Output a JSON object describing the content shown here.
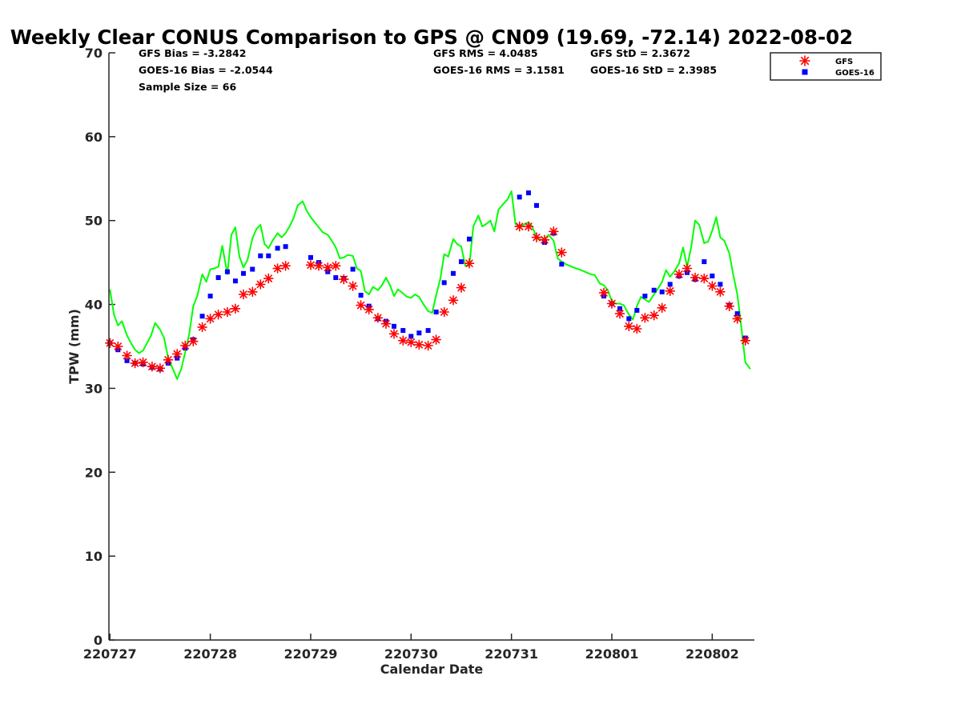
{
  "chart_data": {
    "type": "line+scatter",
    "title": "Weekly Clear CONUS Comparison to GPS @ CN09 (19.69, -72.14) 2022-08-02",
    "xlabel": "Calendar Date",
    "ylabel": "TPW (mm)",
    "xlim": [
      -0.01,
      6.42
    ],
    "ylim": [
      0,
      70
    ],
    "x_ticks": [
      {
        "value": 0,
        "label": "220727"
      },
      {
        "value": 1,
        "label": "220728"
      },
      {
        "value": 2,
        "label": "220729"
      },
      {
        "value": 3,
        "label": "220730"
      },
      {
        "value": 4,
        "label": "220731"
      },
      {
        "value": 5,
        "label": "220801"
      },
      {
        "value": 6,
        "label": "220802"
      }
    ],
    "y_ticks": [
      0,
      10,
      20,
      30,
      40,
      50,
      60,
      70
    ],
    "stats": [
      {
        "id": "gfs_bias",
        "text": "GFS Bias = -3.2842"
      },
      {
        "id": "goes_bias",
        "text": "GOES-16 Bias = -2.0544"
      },
      {
        "id": "sample_size",
        "text": "Sample Size = 66"
      },
      {
        "id": "gfs_rms",
        "text": "GFS RMS = 4.0485"
      },
      {
        "id": "goes_rms",
        "text": "GOES-16 RMS = 3.1581"
      },
      {
        "id": "gfs_std",
        "text": "GFS StD = 2.3672"
      },
      {
        "id": "goes_std",
        "text": "GOES-16 StD = 2.3985"
      }
    ],
    "legend": {
      "position": "top-right",
      "entries": [
        {
          "label": "GFS",
          "marker": "asterisk",
          "color": "#ff0000"
        },
        {
          "label": "GOES-16",
          "marker": "square",
          "color": "#0000ff"
        }
      ]
    },
    "series": [
      {
        "name": "GPS",
        "type": "line",
        "color": "#00ff00",
        "points": [
          [
            0.0,
            41.8
          ],
          [
            0.04,
            38.8
          ],
          [
            0.08,
            37.5
          ],
          [
            0.12,
            38.0
          ],
          [
            0.17,
            36.3
          ],
          [
            0.21,
            35.4
          ],
          [
            0.25,
            34.6
          ],
          [
            0.29,
            34.2
          ],
          [
            0.33,
            34.5
          ],
          [
            0.37,
            35.4
          ],
          [
            0.41,
            36.3
          ],
          [
            0.45,
            37.8
          ],
          [
            0.5,
            37.0
          ],
          [
            0.54,
            36.0
          ],
          [
            0.58,
            33.6
          ],
          [
            0.62,
            32.5
          ],
          [
            0.67,
            31.1
          ],
          [
            0.71,
            32.3
          ],
          [
            0.75,
            34.3
          ],
          [
            0.79,
            36.5
          ],
          [
            0.83,
            39.8
          ],
          [
            0.87,
            41.0
          ],
          [
            0.92,
            43.6
          ],
          [
            0.96,
            42.7
          ],
          [
            1.0,
            44.2
          ],
          [
            1.04,
            44.3
          ],
          [
            1.08,
            44.5
          ],
          [
            1.12,
            47.0
          ],
          [
            1.17,
            43.6
          ],
          [
            1.21,
            48.3
          ],
          [
            1.25,
            49.2
          ],
          [
            1.29,
            45.7
          ],
          [
            1.33,
            44.4
          ],
          [
            1.37,
            45.3
          ],
          [
            1.42,
            47.9
          ],
          [
            1.46,
            49.0
          ],
          [
            1.5,
            49.5
          ],
          [
            1.54,
            47.2
          ],
          [
            1.58,
            46.7
          ],
          [
            1.62,
            47.6
          ],
          [
            1.67,
            48.5
          ],
          [
            1.71,
            48.0
          ],
          [
            1.75,
            48.5
          ],
          [
            1.79,
            49.3
          ],
          [
            1.83,
            50.3
          ],
          [
            1.87,
            51.8
          ],
          [
            1.92,
            52.3
          ],
          [
            1.96,
            51.2
          ],
          [
            2.0,
            50.4
          ],
          [
            2.04,
            49.8
          ],
          [
            2.08,
            49.2
          ],
          [
            2.12,
            48.6
          ],
          [
            2.17,
            48.3
          ],
          [
            2.21,
            47.6
          ],
          [
            2.25,
            46.8
          ],
          [
            2.29,
            45.5
          ],
          [
            2.33,
            45.6
          ],
          [
            2.37,
            45.9
          ],
          [
            2.42,
            45.8
          ],
          [
            2.46,
            44.3
          ],
          [
            2.5,
            44.0
          ],
          [
            2.54,
            41.6
          ],
          [
            2.58,
            41.2
          ],
          [
            2.62,
            42.1
          ],
          [
            2.67,
            41.7
          ],
          [
            2.71,
            42.3
          ],
          [
            2.75,
            43.2
          ],
          [
            2.79,
            42.3
          ],
          [
            2.83,
            41.0
          ],
          [
            2.87,
            41.8
          ],
          [
            2.92,
            41.3
          ],
          [
            2.96,
            40.9
          ],
          [
            3.0,
            40.8
          ],
          [
            3.04,
            41.2
          ],
          [
            3.08,
            40.9
          ],
          [
            3.12,
            40.1
          ],
          [
            3.17,
            39.2
          ],
          [
            3.21,
            39.0
          ],
          [
            3.25,
            41.1
          ],
          [
            3.29,
            43.0
          ],
          [
            3.33,
            46.0
          ],
          [
            3.37,
            45.7
          ],
          [
            3.42,
            47.8
          ],
          [
            3.46,
            47.2
          ],
          [
            3.5,
            46.9
          ],
          [
            3.54,
            44.6
          ],
          [
            3.58,
            44.6
          ],
          [
            3.62,
            49.3
          ],
          [
            3.67,
            50.6
          ],
          [
            3.71,
            49.3
          ],
          [
            3.75,
            49.6
          ],
          [
            3.79,
            50.0
          ],
          [
            3.83,
            48.7
          ],
          [
            3.87,
            51.3
          ],
          [
            3.92,
            52.0
          ],
          [
            3.96,
            52.5
          ],
          [
            4.0,
            53.5
          ],
          [
            4.04,
            49.6
          ],
          [
            4.08,
            49.3
          ],
          [
            4.12,
            49.5
          ],
          [
            4.17,
            49.8
          ],
          [
            4.21,
            49.2
          ],
          [
            4.25,
            48.0
          ],
          [
            4.29,
            47.7
          ],
          [
            4.33,
            47.8
          ],
          [
            4.37,
            48.3
          ],
          [
            4.42,
            47.6
          ],
          [
            4.46,
            45.5
          ],
          [
            4.5,
            45.1
          ],
          [
            4.54,
            44.8
          ],
          [
            4.58,
            44.6
          ],
          [
            4.62,
            44.4
          ],
          [
            4.67,
            44.2
          ],
          [
            4.71,
            44.0
          ],
          [
            4.75,
            43.8
          ],
          [
            4.79,
            43.6
          ],
          [
            4.83,
            43.5
          ],
          [
            4.88,
            42.5
          ],
          [
            4.92,
            42.3
          ],
          [
            4.96,
            41.7
          ],
          [
            5.0,
            40.4
          ],
          [
            5.04,
            40.1
          ],
          [
            5.08,
            40.1
          ],
          [
            5.12,
            39.9
          ],
          [
            5.17,
            38.8
          ],
          [
            5.21,
            38.2
          ],
          [
            5.25,
            39.8
          ],
          [
            5.29,
            40.9
          ],
          [
            5.33,
            40.6
          ],
          [
            5.37,
            40.3
          ],
          [
            5.42,
            41.2
          ],
          [
            5.46,
            41.9
          ],
          [
            5.5,
            42.7
          ],
          [
            5.54,
            44.1
          ],
          [
            5.58,
            43.3
          ],
          [
            5.62,
            43.9
          ],
          [
            5.67,
            44.9
          ],
          [
            5.71,
            46.8
          ],
          [
            5.75,
            44.5
          ],
          [
            5.79,
            46.8
          ],
          [
            5.83,
            50.0
          ],
          [
            5.87,
            49.5
          ],
          [
            5.92,
            47.3
          ],
          [
            5.96,
            47.5
          ],
          [
            6.0,
            48.8
          ],
          [
            6.04,
            50.4
          ],
          [
            6.08,
            48.0
          ],
          [
            6.12,
            47.6
          ],
          [
            6.17,
            46.1
          ],
          [
            6.21,
            43.5
          ],
          [
            6.25,
            41.2
          ],
          [
            6.29,
            37.3
          ],
          [
            6.33,
            33.1
          ],
          [
            6.38,
            32.3
          ]
        ]
      },
      {
        "name": "GFS",
        "type": "scatter",
        "marker": "asterisk",
        "color": "#ff0000",
        "points": [
          [
            0.0,
            35.4
          ],
          [
            0.08,
            35.0
          ],
          [
            0.17,
            33.9
          ],
          [
            0.25,
            33.0
          ],
          [
            0.33,
            33.1
          ],
          [
            0.42,
            32.6
          ],
          [
            0.5,
            32.4
          ],
          [
            0.58,
            33.4
          ],
          [
            0.67,
            34.1
          ],
          [
            0.75,
            35.1
          ],
          [
            0.83,
            35.6
          ],
          [
            0.92,
            37.3
          ],
          [
            1.0,
            38.3
          ],
          [
            1.08,
            38.8
          ],
          [
            1.17,
            39.1
          ],
          [
            1.25,
            39.5
          ],
          [
            1.33,
            41.2
          ],
          [
            1.42,
            41.5
          ],
          [
            1.5,
            42.4
          ],
          [
            1.58,
            43.1
          ],
          [
            1.67,
            44.3
          ],
          [
            1.75,
            44.6
          ],
          [
            2.0,
            44.7
          ],
          [
            2.08,
            44.6
          ],
          [
            2.17,
            44.4
          ],
          [
            2.25,
            44.6
          ],
          [
            2.33,
            43.0
          ],
          [
            2.42,
            42.2
          ],
          [
            2.5,
            39.9
          ],
          [
            2.58,
            39.4
          ],
          [
            2.67,
            38.4
          ],
          [
            2.75,
            37.7
          ],
          [
            2.83,
            36.5
          ],
          [
            2.92,
            35.7
          ],
          [
            3.0,
            35.5
          ],
          [
            3.08,
            35.2
          ],
          [
            3.17,
            35.1
          ],
          [
            3.25,
            35.8
          ],
          [
            3.33,
            39.1
          ],
          [
            3.42,
            40.5
          ],
          [
            3.5,
            42.0
          ],
          [
            3.58,
            44.9
          ],
          [
            4.08,
            49.3
          ],
          [
            4.17,
            49.3
          ],
          [
            4.25,
            48.0
          ],
          [
            4.33,
            47.7
          ],
          [
            4.42,
            48.7
          ],
          [
            4.5,
            46.2
          ],
          [
            4.92,
            41.4
          ],
          [
            5.0,
            40.1
          ],
          [
            5.08,
            38.9
          ],
          [
            5.17,
            37.4
          ],
          [
            5.25,
            37.1
          ],
          [
            5.33,
            38.4
          ],
          [
            5.42,
            38.7
          ],
          [
            5.5,
            39.6
          ],
          [
            5.58,
            41.6
          ],
          [
            5.67,
            43.6
          ],
          [
            5.75,
            44.3
          ],
          [
            5.83,
            43.2
          ],
          [
            5.92,
            43.1
          ],
          [
            6.0,
            42.2
          ],
          [
            6.08,
            41.5
          ],
          [
            6.17,
            39.8
          ],
          [
            6.25,
            38.3
          ],
          [
            6.33,
            35.7
          ]
        ]
      },
      {
        "name": "GOES-16",
        "type": "scatter",
        "marker": "square",
        "color": "#0000ff",
        "points": [
          [
            0.0,
            35.4
          ],
          [
            0.08,
            34.6
          ],
          [
            0.17,
            33.3
          ],
          [
            0.25,
            33.0
          ],
          [
            0.33,
            32.9
          ],
          [
            0.42,
            32.5
          ],
          [
            0.5,
            32.3
          ],
          [
            0.58,
            33.0
          ],
          [
            0.67,
            33.6
          ],
          [
            0.75,
            34.8
          ],
          [
            0.83,
            35.8
          ],
          [
            0.92,
            38.6
          ],
          [
            1.0,
            41.0
          ],
          [
            1.08,
            43.2
          ],
          [
            1.17,
            43.9
          ],
          [
            1.25,
            42.8
          ],
          [
            1.33,
            43.7
          ],
          [
            1.42,
            44.2
          ],
          [
            1.5,
            45.8
          ],
          [
            1.58,
            45.8
          ],
          [
            1.67,
            46.7
          ],
          [
            1.75,
            46.9
          ],
          [
            2.0,
            45.6
          ],
          [
            2.08,
            45.0
          ],
          [
            2.17,
            43.9
          ],
          [
            2.25,
            43.2
          ],
          [
            2.33,
            43.1
          ],
          [
            2.42,
            44.2
          ],
          [
            2.5,
            41.1
          ],
          [
            2.58,
            39.8
          ],
          [
            2.67,
            38.3
          ],
          [
            2.75,
            38.0
          ],
          [
            2.83,
            37.4
          ],
          [
            2.92,
            36.9
          ],
          [
            3.0,
            36.2
          ],
          [
            3.08,
            36.6
          ],
          [
            3.17,
            36.9
          ],
          [
            3.25,
            39.1
          ],
          [
            3.33,
            42.6
          ],
          [
            3.42,
            43.7
          ],
          [
            3.5,
            45.1
          ],
          [
            3.58,
            47.8
          ],
          [
            4.08,
            52.8
          ],
          [
            4.17,
            53.3
          ],
          [
            4.25,
            51.8
          ],
          [
            4.33,
            47.4
          ],
          [
            4.42,
            48.5
          ],
          [
            4.5,
            44.8
          ],
          [
            4.92,
            41.0
          ],
          [
            5.0,
            40.1
          ],
          [
            5.08,
            39.5
          ],
          [
            5.17,
            38.3
          ],
          [
            5.25,
            39.3
          ],
          [
            5.33,
            41.0
          ],
          [
            5.42,
            41.7
          ],
          [
            5.5,
            41.5
          ],
          [
            5.58,
            42.4
          ],
          [
            5.67,
            43.4
          ],
          [
            5.75,
            43.8
          ],
          [
            5.83,
            43.0
          ],
          [
            5.92,
            45.1
          ],
          [
            6.0,
            43.4
          ],
          [
            6.08,
            42.4
          ],
          [
            6.17,
            39.9
          ],
          [
            6.25,
            38.9
          ],
          [
            6.33,
            36.0
          ]
        ]
      }
    ]
  }
}
